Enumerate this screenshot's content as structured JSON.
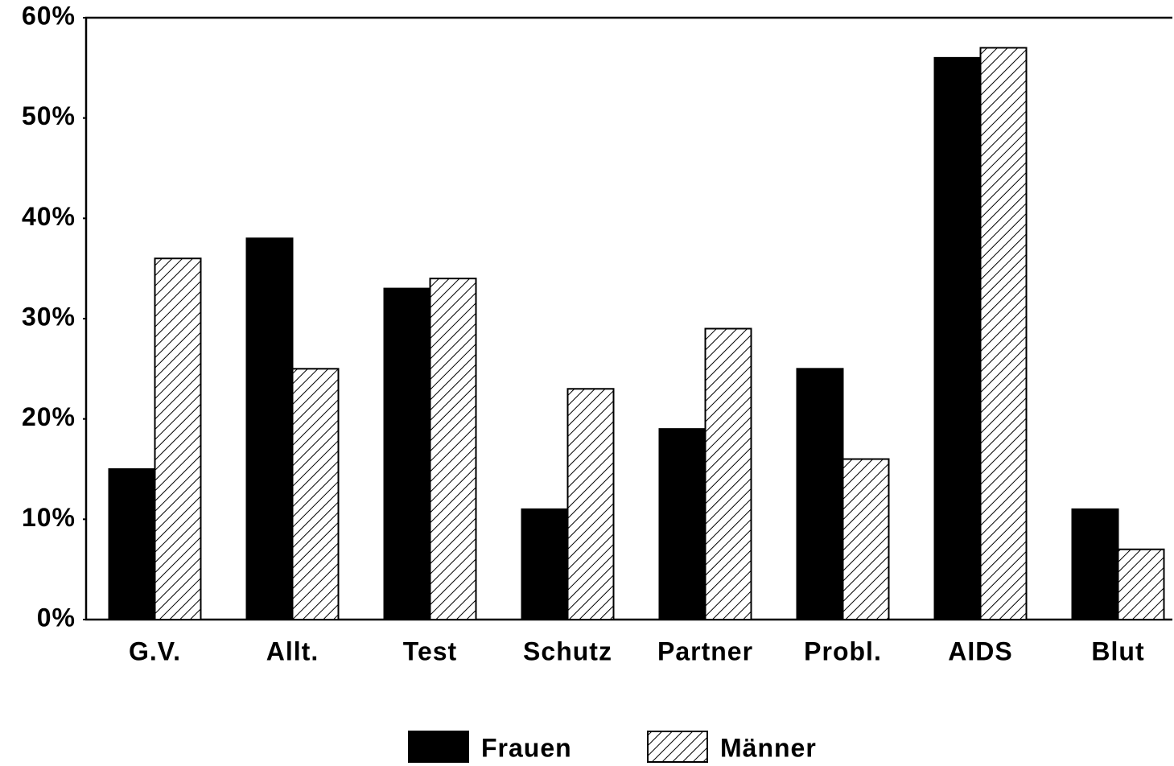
{
  "chart_data": {
    "type": "bar",
    "categories": [
      "G.V.",
      "Allt.",
      "Test",
      "Schutz",
      "Partner",
      "Probl.",
      "AIDS",
      "Blut"
    ],
    "series": [
      {
        "name": "Frauen",
        "color": "#000000",
        "values": [
          15,
          38,
          33,
          11,
          19,
          25,
          56,
          11
        ]
      },
      {
        "name": "Männer",
        "color": "#000000",
        "hatch": true,
        "values": [
          36,
          25,
          34,
          23,
          29,
          16,
          57,
          7
        ]
      }
    ],
    "ylim": [
      0,
      60
    ],
    "yticks": [
      {
        "value": 0,
        "label": "0%"
      },
      {
        "value": 10,
        "label": "10%"
      },
      {
        "value": 20,
        "label": "20%"
      },
      {
        "value": 30,
        "label": "30%"
      },
      {
        "value": 40,
        "label": "40%"
      },
      {
        "value": 50,
        "label": "50%"
      },
      {
        "value": 60,
        "label": "60%"
      }
    ],
    "legend": "bottom"
  }
}
